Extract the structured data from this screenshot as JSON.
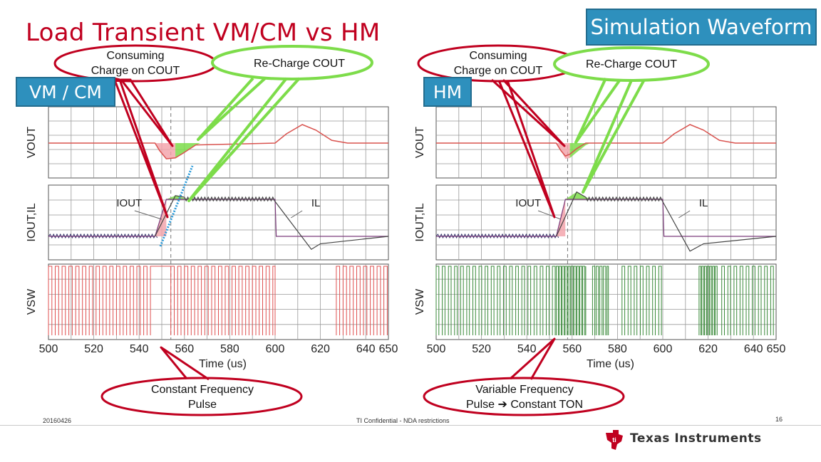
{
  "slide": {
    "title": "Load Transient  VM/CM vs HM",
    "label_sim": "Simulation Waveform",
    "label_vmcm": "VM / CM",
    "label_hm": "HM",
    "date": "20160426",
    "confidential": "TI Confidential - NDA restrictions",
    "page": "16",
    "company": "Texas Instruments",
    "colors": {
      "title": "#c0001f",
      "label_bg": "#2e90bd",
      "vout": "#d9534f",
      "vsw_left": "#e05050",
      "vsw_right": "#3a8a3a",
      "callout_red": "#c0001f",
      "callout_green": "#7ddc4a"
    }
  },
  "callouts": {
    "left_consume_line1": "Consuming",
    "left_consume_line2": "Charge on COUT",
    "left_recharge": "Re-Charge COUT",
    "right_consume_line1": "Consuming",
    "right_consume_line2": "Charge on COUT",
    "right_recharge": "Re-Charge COUT",
    "left_bottom_line1": "Constant Frequency",
    "left_bottom_line2": "Pulse",
    "right_bottom_line1": "Variable Frequency",
    "right_bottom_line2": "Pulse ➔ Constant TON"
  },
  "chart_data": [
    {
      "type": "line",
      "mode": "VM / CM",
      "xlabel": "Time (us)",
      "x_ticks": [
        500,
        520,
        540,
        560,
        580,
        600,
        620,
        640,
        650
      ],
      "xlim": [
        500,
        650
      ],
      "grid": true,
      "panels": [
        {
          "ylabel": "VOUT",
          "series": [
            {
              "name": "VOUT",
              "x": [
                500,
                547,
                549,
                552,
                556,
                560,
                565,
                600,
                605,
                612,
                618,
                625,
                632,
                650
              ],
              "y": [
                0,
                0,
                -0.4,
                -0.85,
                -0.8,
                -0.5,
                -0.1,
                0,
                0.5,
                1,
                0.7,
                0.15,
                0,
                0
              ]
            }
          ]
        },
        {
          "ylabel": "IOUT,IL",
          "series": [
            {
              "name": "IOUT",
              "x": [
                500,
                547,
                552,
                600,
                600.5,
                650
              ],
              "y": [
                0,
                0,
                1,
                1,
                0,
                0
              ]
            },
            {
              "name": "IL",
              "x": [
                500,
                547,
                556,
                560,
                600,
                616,
                620,
                650
              ],
              "y": [
                0,
                0,
                1.1,
                1,
                1,
                -0.35,
                -0.2,
                0
              ]
            }
          ]
        },
        {
          "ylabel": "VSW",
          "series": [
            {
              "name": "VSW",
              "switching": "constant frequency",
              "x": [
                500,
                545,
                554,
                599,
                612,
                628,
                650
              ],
              "y": [
                1,
                1,
                1,
                1,
                0,
                1,
                1
              ]
            }
          ]
        }
      ]
    },
    {
      "type": "line",
      "mode": "HM",
      "xlabel": "Time (us)",
      "x_ticks": [
        500,
        520,
        540,
        560,
        580,
        600,
        620,
        640,
        650
      ],
      "xlim": [
        500,
        650
      ],
      "grid": true,
      "panels": [
        {
          "ylabel": "VOUT",
          "series": [
            {
              "name": "VOUT",
              "x": [
                500,
                553,
                555,
                557,
                559,
                562,
                566,
                600,
                605,
                612,
                618,
                625,
                632,
                650
              ],
              "y": [
                0,
                0,
                -0.4,
                -0.7,
                -0.6,
                -0.3,
                0,
                0,
                0.5,
                1,
                0.7,
                0.15,
                0,
                0
              ]
            }
          ]
        },
        {
          "ylabel": "IOUT,IL",
          "series": [
            {
              "name": "IOUT",
              "x": [
                500,
                553,
                557,
                600,
                600.5,
                650
              ],
              "y": [
                0,
                0,
                1,
                1,
                0,
                0
              ]
            },
            {
              "name": "IL",
              "x": [
                500,
                553,
                562,
                566,
                600,
                612,
                618,
                650
              ],
              "y": [
                0,
                0,
                1.2,
                1,
                1,
                -0.4,
                -0.2,
                0
              ]
            }
          ]
        },
        {
          "ylabel": "VSW",
          "series": [
            {
              "name": "VSW",
              "switching": "variable frequency, constant TON",
              "x": [
                500,
                553,
                558,
                566,
                570,
                576,
                582,
                600,
                618,
                628,
                650
              ],
              "y": [
                1,
                1,
                1,
                0,
                1,
                0,
                1,
                1,
                0,
                1,
                1
              ]
            }
          ]
        }
      ]
    }
  ]
}
